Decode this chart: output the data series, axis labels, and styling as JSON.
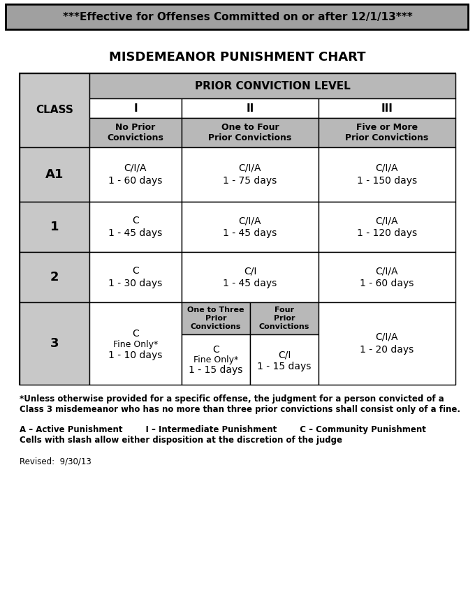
{
  "title_banner": "***Effective for Offenses Committed on or after 12/1/13***",
  "chart_title": "MISDEMEANOR PUNISHMENT CHART",
  "bg_color": "#ffffff",
  "banner_bg": "#a0a0a0",
  "cell_gray": "#c8c8c8",
  "header_gray": "#b8b8b8",
  "footnote1": "*Unless otherwise provided for a specific offense, the judgment for a person convicted of a\nClass 3 misdemeanor who has no more than three prior convictions shall consist only of a fine.",
  "footnote2": "A – Active Punishment        I – Intermediate Punishment        C – Community Punishment\nCells with slash allow either disposition at the discretion of the judge",
  "revised": "Revised:  9/30/13"
}
